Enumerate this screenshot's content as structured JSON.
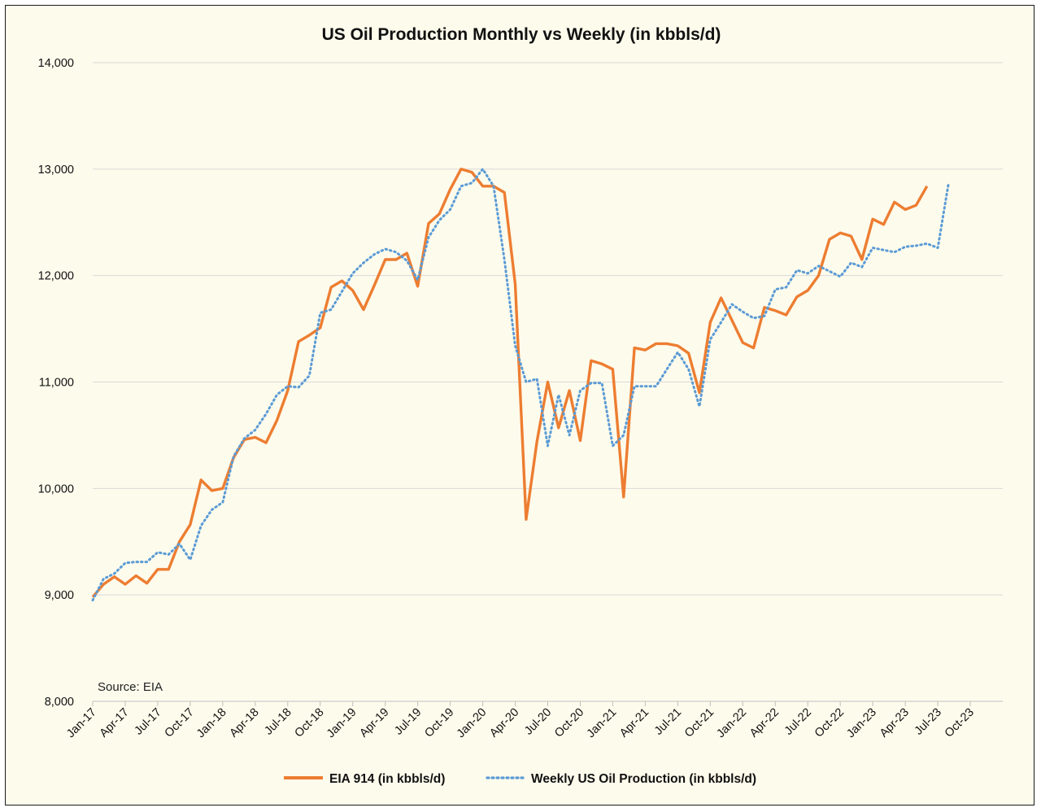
{
  "chart_data": {
    "type": "line",
    "title": "US Oil Production Monthly vs Weekly (in kbbls/d)",
    "annotation": "Source: EIA",
    "xlabel": "",
    "ylabel": "",
    "ylim": [
      8000,
      14000
    ],
    "yticks": [
      "8,000",
      "9,000",
      "10,000",
      "11,000",
      "12,000",
      "13,000",
      "14,000"
    ],
    "xticks": [
      "Jan-17",
      "Apr-17",
      "Jul-17",
      "Oct-17",
      "Jan-18",
      "Apr-18",
      "Jul-18",
      "Oct-18",
      "Jan-19",
      "Apr-19",
      "Jul-19",
      "Oct-19",
      "Jan-20",
      "Apr-20",
      "Jul-20",
      "Oct-20",
      "Jan-21",
      "Apr-21",
      "Jul-21",
      "Oct-21",
      "Jan-22",
      "Apr-22",
      "Jul-22",
      "Oct-22",
      "Jan-23",
      "Apr-23",
      "Jul-23",
      "Oct-23"
    ],
    "grid": true,
    "legend": "bottom",
    "series": [
      {
        "name": "EIA 914 (in kbbls/d)",
        "color": "#ed7d31",
        "style": "solid",
        "x": [
          "2017-01",
          "2017-02",
          "2017-03",
          "2017-04",
          "2017-05",
          "2017-06",
          "2017-07",
          "2017-08",
          "2017-09",
          "2017-10",
          "2017-11",
          "2017-12",
          "2018-01",
          "2018-02",
          "2018-03",
          "2018-04",
          "2018-05",
          "2018-06",
          "2018-07",
          "2018-08",
          "2018-09",
          "2018-10",
          "2018-11",
          "2018-12",
          "2019-01",
          "2019-02",
          "2019-03",
          "2019-04",
          "2019-05",
          "2019-06",
          "2019-07",
          "2019-08",
          "2019-09",
          "2019-10",
          "2019-11",
          "2019-12",
          "2020-01",
          "2020-02",
          "2020-03",
          "2020-04",
          "2020-05",
          "2020-06",
          "2020-07",
          "2020-08",
          "2020-09",
          "2020-10",
          "2020-11",
          "2020-12",
          "2021-01",
          "2021-02",
          "2021-03",
          "2021-04",
          "2021-05",
          "2021-06",
          "2021-07",
          "2021-08",
          "2021-09",
          "2021-10",
          "2021-11",
          "2021-12",
          "2022-01",
          "2022-02",
          "2022-03",
          "2022-04",
          "2022-05",
          "2022-06",
          "2022-07",
          "2022-08",
          "2022-09",
          "2022-10",
          "2022-11",
          "2022-12",
          "2023-01",
          "2023-02",
          "2023-03",
          "2023-04",
          "2023-05",
          "2023-06"
        ],
        "values": [
          8980,
          9100,
          9170,
          9100,
          9180,
          9110,
          9240,
          9240,
          9500,
          9660,
          10080,
          9980,
          10000,
          10290,
          10460,
          10480,
          10430,
          10640,
          10920,
          11380,
          11440,
          11510,
          11890,
          11950,
          11860,
          11680,
          11910,
          12150,
          12150,
          12210,
          11900,
          12490,
          12580,
          12810,
          13000,
          12970,
          12840,
          12840,
          12780,
          11920,
          9710,
          10440,
          11000,
          10570,
          10920,
          10450,
          11200,
          11170,
          11120,
          9920,
          11320,
          11300,
          11360,
          11360,
          11340,
          11270,
          10900,
          11560,
          11790,
          11580,
          11370,
          11320,
          11700,
          11670,
          11630,
          11800,
          11860,
          12000,
          12340,
          12400,
          12370,
          12150,
          12530,
          12480,
          12690,
          12620,
          12660,
          12840
        ]
      },
      {
        "name": "Weekly US Oil Production (in kbbls/d)",
        "color": "#5b9bd5",
        "style": "dotted",
        "x": [
          "2017-01",
          "2017-02",
          "2017-03",
          "2017-04",
          "2017-05",
          "2017-06",
          "2017-07",
          "2017-08",
          "2017-09",
          "2017-10",
          "2017-11",
          "2017-12",
          "2018-01",
          "2018-02",
          "2018-03",
          "2018-04",
          "2018-05",
          "2018-06",
          "2018-07",
          "2018-08",
          "2018-09",
          "2018-10",
          "2018-11",
          "2018-12",
          "2019-01",
          "2019-02",
          "2019-03",
          "2019-04",
          "2019-05",
          "2019-06",
          "2019-07",
          "2019-08",
          "2019-09",
          "2019-10",
          "2019-11",
          "2019-12",
          "2020-01",
          "2020-02",
          "2020-03",
          "2020-04",
          "2020-05",
          "2020-06",
          "2020-07",
          "2020-08",
          "2020-09",
          "2020-10",
          "2020-11",
          "2020-12",
          "2021-01",
          "2021-02",
          "2021-03",
          "2021-04",
          "2021-05",
          "2021-06",
          "2021-07",
          "2021-08",
          "2021-09",
          "2021-10",
          "2021-11",
          "2021-12",
          "2022-01",
          "2022-02",
          "2022-03",
          "2022-04",
          "2022-05",
          "2022-06",
          "2022-07",
          "2022-08",
          "2022-09",
          "2022-10",
          "2022-11",
          "2022-12",
          "2023-01",
          "2023-02",
          "2023-03",
          "2023-04",
          "2023-05",
          "2023-06",
          "2023-07",
          "2023-08"
        ],
        "values": [
          8950,
          9150,
          9200,
          9300,
          9310,
          9310,
          9400,
          9380,
          9480,
          9330,
          9650,
          9800,
          9870,
          10300,
          10470,
          10550,
          10700,
          10880,
          10960,
          10950,
          11060,
          11650,
          11680,
          11850,
          12020,
          12120,
          12200,
          12250,
          12220,
          12140,
          11960,
          12360,
          12520,
          12620,
          12840,
          12870,
          13000,
          12840,
          12150,
          11340,
          11000,
          11030,
          10400,
          10880,
          10500,
          10920,
          10990,
          10990,
          10400,
          10500,
          10960,
          10960,
          10960,
          11120,
          11280,
          11120,
          10770,
          11400,
          11560,
          11730,
          11660,
          11600,
          11620,
          11870,
          11890,
          12050,
          12020,
          12090,
          12040,
          11990,
          12120,
          12080,
          12260,
          12240,
          12220,
          12270,
          12280,
          12300,
          12260,
          12870
        ]
      }
    ]
  }
}
